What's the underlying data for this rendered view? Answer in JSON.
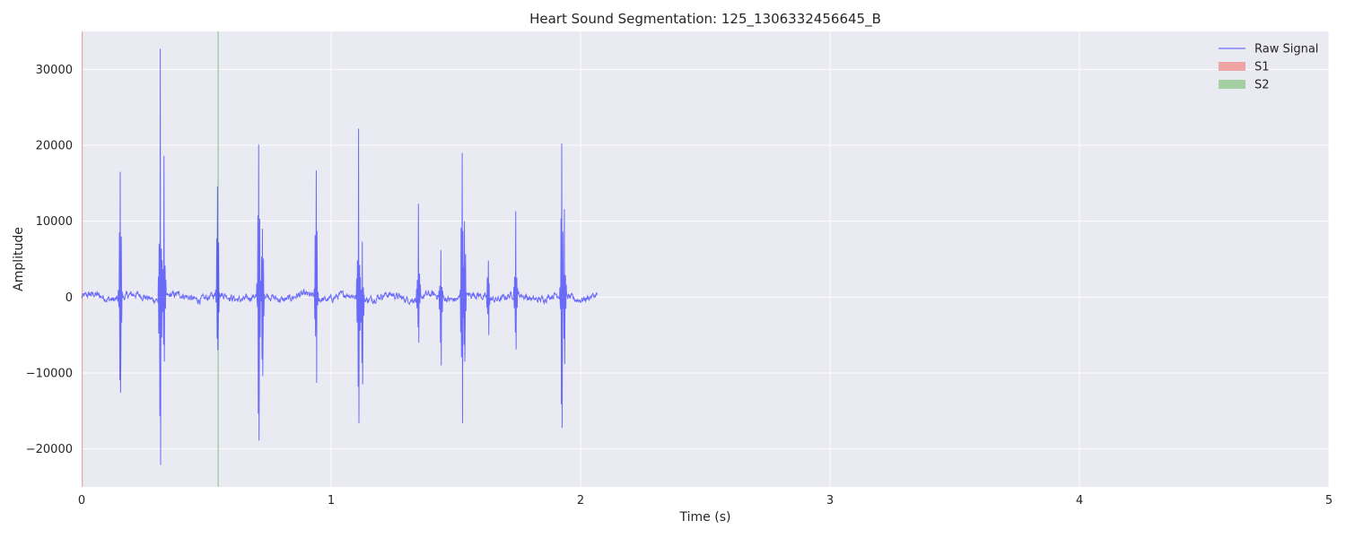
{
  "chart_data": {
    "type": "line",
    "title": "Heart Sound Segmentation: 125_1306332456645_B",
    "xlabel": "Time (s)",
    "ylabel": "Amplitude",
    "xlim": [
      0,
      5
    ],
    "ylim": [
      -25000,
      35000
    ],
    "x_ticks": [
      0,
      1,
      2,
      3,
      4,
      5
    ],
    "y_ticks": [
      -20000,
      -10000,
      0,
      10000,
      20000,
      30000
    ],
    "grid": true,
    "legend_position": "top-right",
    "series": [
      {
        "name": "Raw Signal",
        "color": "#0000ff",
        "duration": 2.07,
        "baseline_noise_amplitude": 900,
        "spikes": [
          {
            "x": 0.155,
            "max": 16500,
            "min": -12600
          },
          {
            "x": 0.315,
            "max": 32700,
            "min": -22100
          },
          {
            "x": 0.33,
            "max": 18600,
            "min": -8500
          },
          {
            "x": 0.545,
            "max": 14600,
            "min": -7000
          },
          {
            "x": 0.71,
            "max": 20100,
            "min": -18900
          },
          {
            "x": 0.725,
            "max": 9000,
            "min": -10400
          },
          {
            "x": 0.94,
            "max": 16700,
            "min": -11300
          },
          {
            "x": 1.11,
            "max": 22200,
            "min": -16600
          },
          {
            "x": 1.125,
            "max": 7300,
            "min": -11500
          },
          {
            "x": 1.35,
            "max": 12300,
            "min": -6000
          },
          {
            "x": 1.44,
            "max": 6200,
            "min": -9000
          },
          {
            "x": 1.525,
            "max": 19000,
            "min": -16600
          },
          {
            "x": 1.535,
            "max": 10000,
            "min": -8500
          },
          {
            "x": 1.63,
            "max": 4800,
            "min": -5000
          },
          {
            "x": 1.74,
            "max": 11300,
            "min": -6900
          },
          {
            "x": 1.925,
            "max": 20200,
            "min": -17200
          },
          {
            "x": 1.935,
            "max": 11600,
            "min": -8800
          }
        ]
      }
    ],
    "regions": [
      {
        "name": "S1",
        "start": 0.0,
        "end": 0.004,
        "color": "#e24a4a"
      },
      {
        "name": "S2",
        "start": 0.545,
        "end": 0.549,
        "color": "#2ca02c"
      }
    ],
    "legend": [
      {
        "label": "Raw Signal",
        "kind": "line",
        "color": "#7070ff"
      },
      {
        "label": "S1",
        "kind": "patch",
        "color": "#f0a3a3"
      },
      {
        "label": "S2",
        "kind": "patch",
        "color": "#a3cfa3"
      }
    ]
  }
}
